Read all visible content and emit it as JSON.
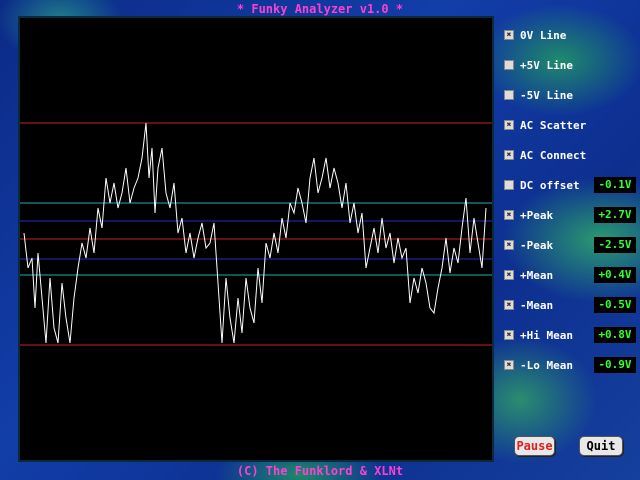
{
  "header": {
    "title": "* Funky Analyzer v1.0 *"
  },
  "options": [
    {
      "label": "0V Line",
      "checked": true
    },
    {
      "label": "+5V Line",
      "checked": false
    },
    {
      "label": "-5V Line",
      "checked": false
    },
    {
      "label": "AC Scatter",
      "checked": true
    },
    {
      "label": "AC Connect",
      "checked": true
    },
    {
      "label": "DC offset",
      "checked": false,
      "value": "-0.1V"
    },
    {
      "label": "+Peak",
      "checked": true,
      "value": "+2.7V"
    },
    {
      "label": "-Peak",
      "checked": true,
      "value": "-2.5V"
    },
    {
      "label": "+Mean",
      "checked": true,
      "value": "+0.4V"
    },
    {
      "label": "-Mean",
      "checked": true,
      "value": "-0.5V"
    },
    {
      "label": "+Hi Mean",
      "checked": true,
      "value": "+0.8V"
    },
    {
      "label": "-Lo Mean",
      "checked": true,
      "value": "-0.9V"
    }
  ],
  "buttons": [
    "Pause",
    "Quit"
  ],
  "footer": "(C) The Funklord & XLNt"
}
